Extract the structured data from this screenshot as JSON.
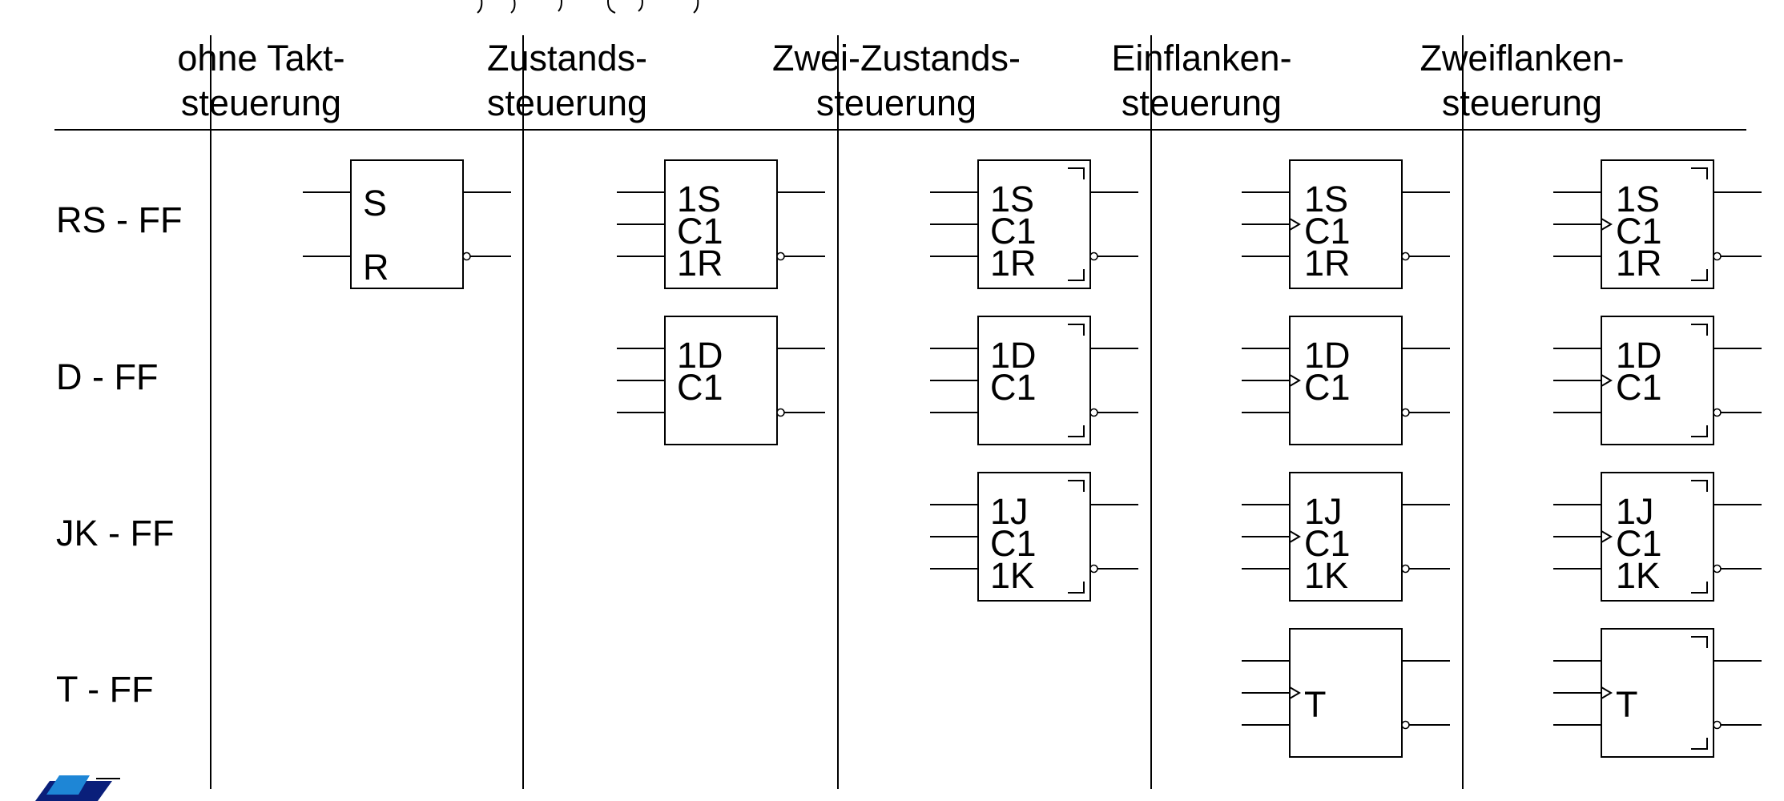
{
  "colors": {
    "ink": "#000000",
    "background": "#ffffff",
    "logo_blue": "#1e86d6",
    "logo_dark": "#0a1f7a"
  },
  "top_title_fragment": "",
  "columns": [
    {
      "id": "ohne",
      "line1": "ohne Takt-",
      "line2": "steuerung"
    },
    {
      "id": "zust",
      "line1": "Zustands-",
      "line2": "steuerung"
    },
    {
      "id": "zwei",
      "line1": "Zwei-Zustands-",
      "line2": "steuerung"
    },
    {
      "id": "einf",
      "line1": "Einflanken-",
      "line2": "steuerung"
    },
    {
      "id": "zweif",
      "line1": "Zweiflanken-",
      "line2": "steuerung"
    }
  ],
  "rows": [
    {
      "id": "rs",
      "label": "RS - FF"
    },
    {
      "id": "d",
      "label": "D - FF"
    },
    {
      "id": "jk",
      "label": "JK - FF"
    },
    {
      "id": "t",
      "label": "T - FF"
    }
  ],
  "symbols": [
    {
      "id": "rs-ohne",
      "row": "rs",
      "col": "ohne",
      "labels": [
        "S",
        "R"
      ],
      "clock_triangle": false,
      "postponed_marks": false
    },
    {
      "id": "rs-zust",
      "row": "rs",
      "col": "zust",
      "labels": [
        "1S",
        "C1",
        "1R"
      ],
      "clock_triangle": false,
      "postponed_marks": false
    },
    {
      "id": "rs-zwei",
      "row": "rs",
      "col": "zwei",
      "labels": [
        "1S",
        "C1",
        "1R"
      ],
      "clock_triangle": false,
      "postponed_marks": true
    },
    {
      "id": "rs-einf",
      "row": "rs",
      "col": "einf",
      "labels": [
        "1S",
        "C1",
        "1R"
      ],
      "clock_triangle": true,
      "postponed_marks": false
    },
    {
      "id": "rs-zweif",
      "row": "rs",
      "col": "zweif",
      "labels": [
        "1S",
        "C1",
        "1R"
      ],
      "clock_triangle": true,
      "postponed_marks": true
    },
    {
      "id": "d-zust",
      "row": "d",
      "col": "zust",
      "labels": [
        "1D",
        "C1"
      ],
      "clock_triangle": false,
      "postponed_marks": false
    },
    {
      "id": "d-zwei",
      "row": "d",
      "col": "zwei",
      "labels": [
        "1D",
        "C1"
      ],
      "clock_triangle": false,
      "postponed_marks": true
    },
    {
      "id": "d-einf",
      "row": "d",
      "col": "einf",
      "labels": [
        "1D",
        "C1"
      ],
      "clock_triangle": true,
      "postponed_marks": false
    },
    {
      "id": "d-zweif",
      "row": "d",
      "col": "zweif",
      "labels": [
        "1D",
        "C1"
      ],
      "clock_triangle": true,
      "postponed_marks": true
    },
    {
      "id": "jk-zwei",
      "row": "jk",
      "col": "zwei",
      "labels": [
        "1J",
        "C1",
        "1K"
      ],
      "clock_triangle": false,
      "postponed_marks": true
    },
    {
      "id": "jk-einf",
      "row": "jk",
      "col": "einf",
      "labels": [
        "1J",
        "C1",
        "1K"
      ],
      "clock_triangle": true,
      "postponed_marks": false
    },
    {
      "id": "jk-zweif",
      "row": "jk",
      "col": "zweif",
      "labels": [
        "1J",
        "C1",
        "1K"
      ],
      "clock_triangle": true,
      "postponed_marks": true
    },
    {
      "id": "t-einf",
      "row": "t",
      "col": "einf",
      "labels": [
        "T"
      ],
      "clock_triangle": true,
      "postponed_marks": false
    },
    {
      "id": "t-zweif",
      "row": "t",
      "col": "zweif",
      "labels": [
        "T"
      ],
      "clock_triangle": true,
      "postponed_marks": true
    }
  ],
  "logo": {
    "icon": "iti-logo-icon"
  }
}
